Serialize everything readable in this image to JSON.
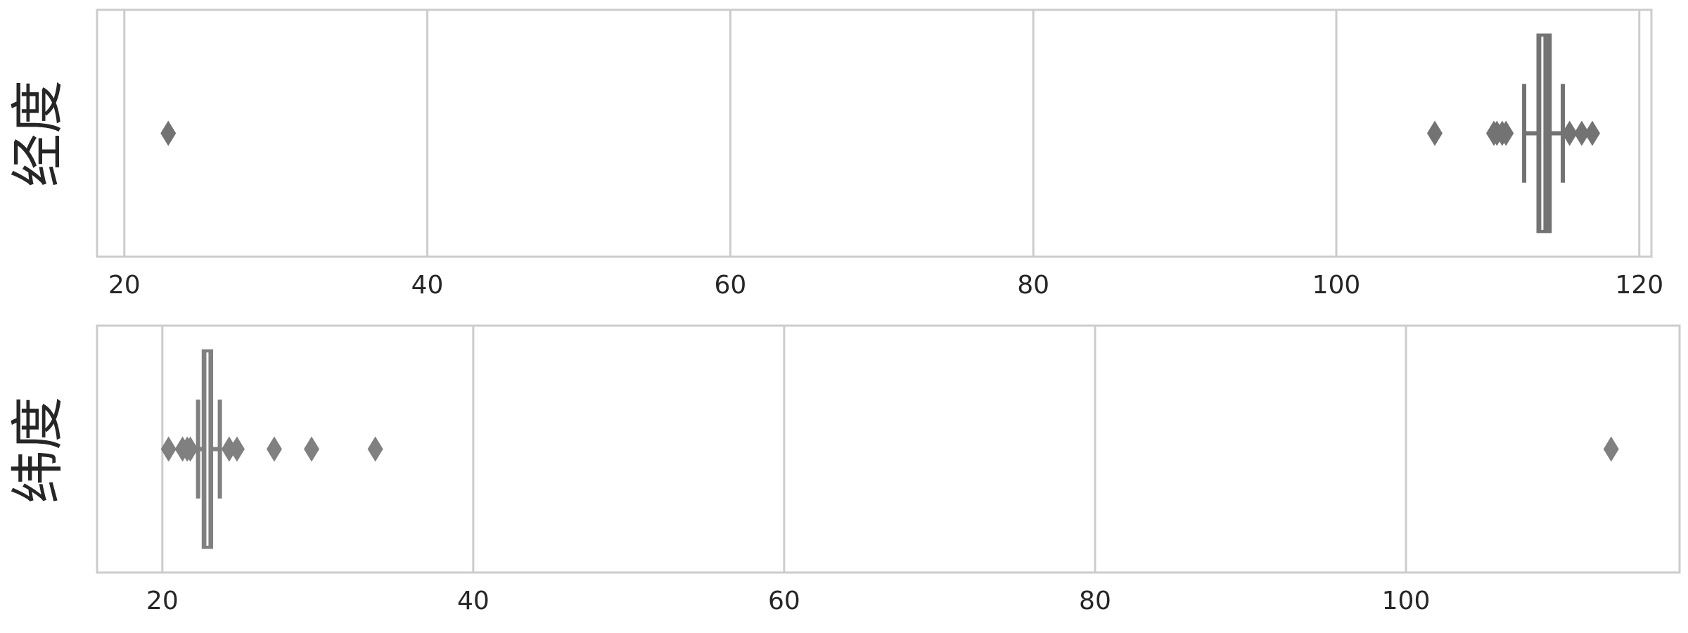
{
  "chart_data": [
    {
      "type": "box",
      "orientation": "horizontal",
      "ylabel": "经度",
      "xlim": [
        18.2,
        120.8
      ],
      "xticks": [
        20,
        40,
        60,
        80,
        100,
        120
      ],
      "xtick_labels": [
        "20",
        "40",
        "60",
        "80",
        "100",
        "120"
      ],
      "grid": true,
      "color": "#737373",
      "box": {
        "q1": 113.28,
        "median": 113.6,
        "q3": 114.15,
        "whisker_low": 112.4,
        "whisker_high": 114.95
      },
      "outliers": [
        22.9,
        106.5,
        110.4,
        110.6,
        110.95,
        111.2,
        115.4,
        116.2,
        116.9
      ]
    },
    {
      "type": "box",
      "orientation": "horizontal",
      "ylabel": "纬度",
      "xlim": [
        15.8,
        117.6
      ],
      "xticks": [
        20,
        40,
        60,
        80,
        100
      ],
      "xtick_labels": [
        "20",
        "40",
        "60",
        "80",
        "100"
      ],
      "grid": true,
      "color": "#808080",
      "box": {
        "q1": 22.6,
        "median": 22.9,
        "q3": 23.2,
        "whisker_low": 22.3,
        "whisker_high": 23.7
      },
      "outliers": [
        20.4,
        21.3,
        21.6,
        21.8,
        24.3,
        24.8,
        27.2,
        29.6,
        33.7,
        113.2
      ]
    }
  ]
}
